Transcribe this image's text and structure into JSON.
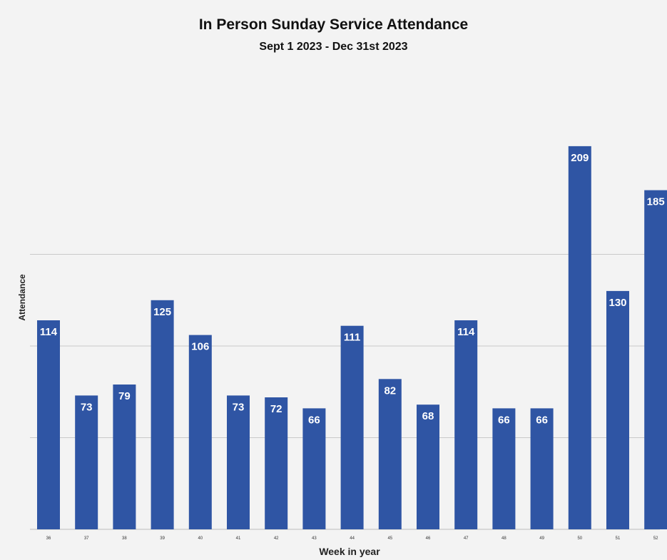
{
  "chart_data": {
    "type": "bar",
    "title": "In Person Sunday Service Attendance",
    "subtitle": "Sept 1 2023 - Dec 31st 2023",
    "xlabel": "Week in year",
    "ylabel": "Attendance",
    "categories": [
      "36",
      "37",
      "38",
      "39",
      "40",
      "41",
      "42",
      "43",
      "44",
      "45",
      "46",
      "47",
      "48",
      "49",
      "50",
      "51",
      "52"
    ],
    "values": [
      114,
      73,
      79,
      125,
      106,
      73,
      72,
      66,
      111,
      82,
      68,
      114,
      66,
      66,
      209,
      130,
      185
    ],
    "ylim": [
      0,
      250
    ],
    "gridlines": [
      50,
      100,
      150
    ],
    "grid": true,
    "legend": "none",
    "bar_color": "#2f55a4"
  }
}
